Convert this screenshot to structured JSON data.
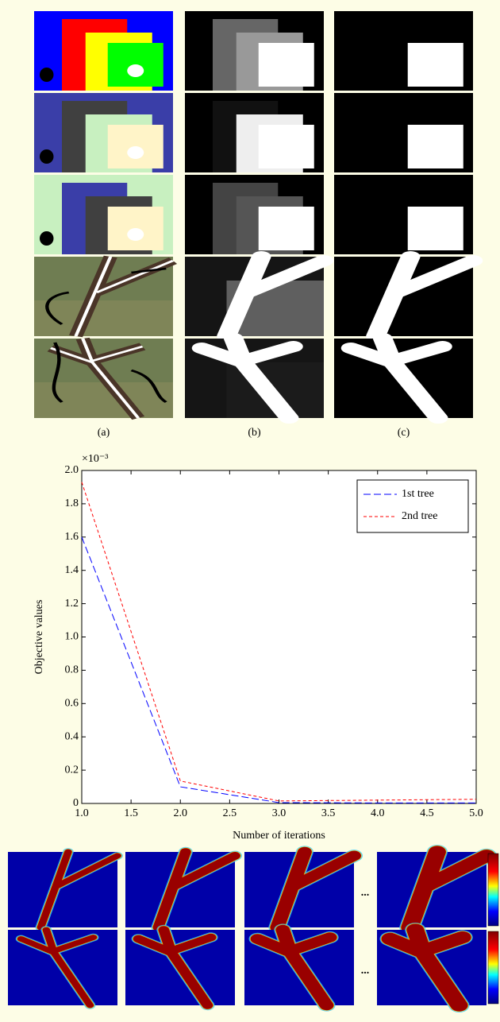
{
  "panel_labels": [
    "(a)",
    "(b)",
    "(c)"
  ],
  "ellipsis": "...",
  "chart_data": {
    "type": "line",
    "y_multiplier": "×10⁻³",
    "x_label": "Number of iterations",
    "y_label": "Objective values",
    "x": [
      1,
      2,
      3,
      4,
      5
    ],
    "series": [
      {
        "name": "1st tree",
        "color": "#0000ff",
        "values": [
          1.6,
          0.1,
          0.005,
          0.003,
          0.003
        ]
      },
      {
        "name": "2nd tree",
        "color": "#ff0000",
        "values": [
          1.93,
          0.135,
          0.015,
          0.02,
          0.025
        ]
      }
    ],
    "xlim": [
      1,
      5
    ],
    "xticks": [
      {
        "value": 1,
        "label": "1.0"
      },
      1.5,
      {
        "value": 2,
        "label": "2.0"
      },
      2.5,
      {
        "value": 3,
        "label": "3.0"
      },
      3.5,
      {
        "value": 4,
        "label": "4.0"
      },
      4.5,
      {
        "value": 5,
        "label": "5.0"
      }
    ],
    "ylim": [
      0,
      2
    ],
    "yticks": [
      0,
      0.2,
      0.4,
      0.6,
      0.8,
      {
        "value": 1,
        "label": "1.0"
      },
      1.2,
      1.4,
      1.6,
      1.8,
      {
        "value": 2,
        "label": "2.0"
      }
    ],
    "legend": "upper right",
    "grid": false
  }
}
